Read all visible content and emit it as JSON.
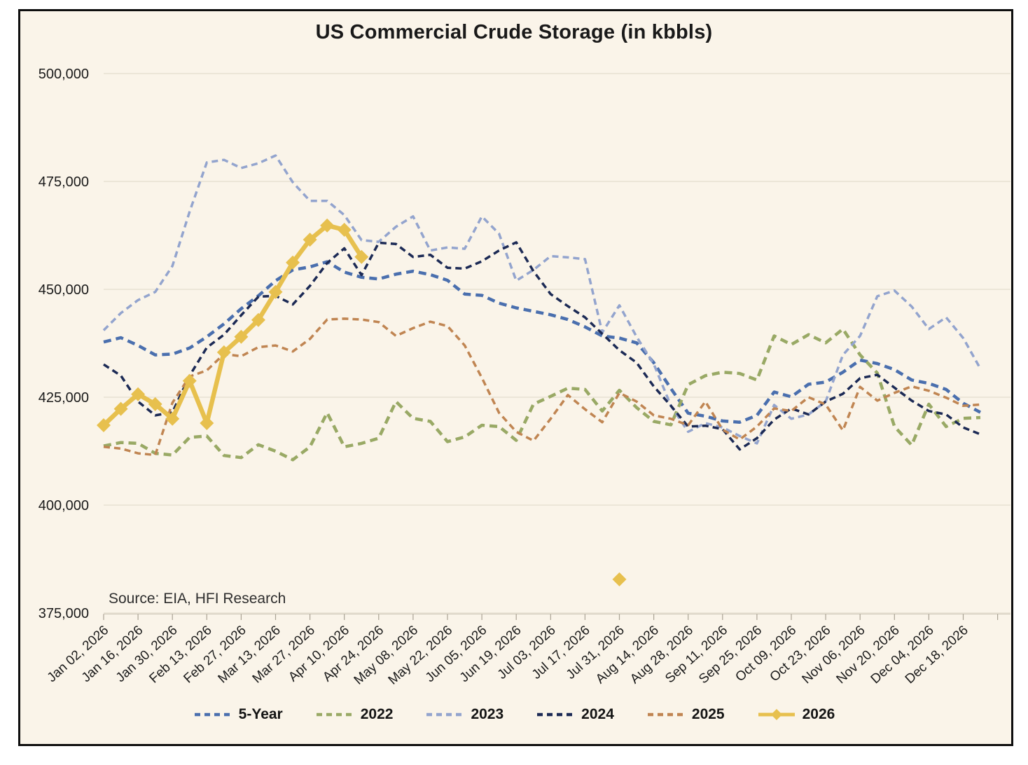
{
  "title": "US Commercial Crude Storage (in kbbls)",
  "source_note": "Source: EIA, HFI Research",
  "colors": {
    "background": "#faf4e9",
    "frame_border": "#0e0e0e",
    "gridline": "#e3ddcf",
    "axis_line": "#c9c2b2",
    "tick_mark": "#a9a294",
    "axis_text": "#1a1a1a"
  },
  "chart_data": {
    "type": "line",
    "title": "US Commercial Crude Storage (in kbbls)",
    "xlabel": "",
    "ylabel": "",
    "grid": "horizontal",
    "legend_position": "bottom",
    "ylim": [
      375000,
      500000
    ],
    "y_ticks": [
      500000,
      475000,
      450000,
      425000,
      400000,
      375000
    ],
    "y_tick_labels": [
      "500,000",
      "475,000",
      "450,000",
      "425,000",
      "400,000",
      "375,000"
    ],
    "x_unit": "weekly points, labels every 2 weeks",
    "x_tick_labels": [
      "Jan 02, 2026",
      "Jan 16, 2026",
      "Jan 30, 2026",
      "Feb 13, 2026",
      "Feb 27, 2026",
      "Mar 13, 2026",
      "Mar 27, 2026",
      "Apr 10, 2026",
      "Apr 24, 2026",
      "May 08, 2026",
      "May 22, 2026",
      "Jun 05, 2026",
      "Jun 19, 2026",
      "Jul 03, 2026",
      "Jul 17, 2026",
      "Jul 31, 2026",
      "Aug 14, 2026",
      "Aug 28, 2026",
      "Sep 11, 2026",
      "Sep 25, 2026",
      "Oct 09, 2026",
      "Oct 23, 2026",
      "Nov 06, 2026",
      "Nov 20, 2026",
      "Dec 04, 2026",
      "Dec 18, 2026"
    ],
    "series": [
      {
        "name": "5-Year",
        "color": "#4a6fae",
        "style": "dashed",
        "marker": "none",
        "values": [
          437800,
          438800,
          437000,
          434800,
          435000,
          436400,
          439000,
          442000,
          445500,
          448500,
          452000,
          454500,
          455200,
          456400,
          454000,
          452800,
          452400,
          453500,
          454200,
          453400,
          452100,
          448900,
          448600,
          446800,
          445700,
          444900,
          444100,
          443000,
          441300,
          439200,
          438700,
          437600,
          433000,
          427000,
          421300,
          420600,
          419500,
          419200,
          420800,
          426200,
          425100,
          428000,
          428500,
          430800,
          433600,
          432800,
          431400,
          429000,
          428200,
          426800,
          423600,
          421500
        ]
      },
      {
        "name": "2022",
        "color": "#99a965",
        "style": "dashed",
        "marker": "none",
        "values": [
          413700,
          414500,
          414300,
          412000,
          411600,
          415700,
          416000,
          411500,
          411000,
          414000,
          412500,
          410500,
          413500,
          421400,
          413500,
          414300,
          415500,
          424000,
          420100,
          419400,
          414700,
          415800,
          418500,
          418200,
          415000,
          423400,
          425200,
          427100,
          426800,
          421800,
          426600,
          422600,
          419400,
          418600,
          427900,
          430000,
          430800,
          430500,
          429000,
          439200,
          437200,
          439500,
          437600,
          440800,
          434800,
          430600,
          418200,
          413900,
          423400,
          418200,
          420100,
          420300
        ]
      },
      {
        "name": "2023",
        "color": "#93a4ce",
        "style": "dashed",
        "marker": "none",
        "values": [
          440500,
          444500,
          447500,
          449400,
          455400,
          468000,
          479400,
          480000,
          478100,
          479200,
          481000,
          474800,
          470500,
          470500,
          467200,
          461400,
          461000,
          464500,
          466900,
          459000,
          459700,
          459400,
          466900,
          462900,
          452000,
          454500,
          457700,
          457400,
          457000,
          440000,
          446300,
          439000,
          432700,
          423000,
          417000,
          419000,
          418000,
          416000,
          414300,
          423200,
          420000,
          421000,
          424000,
          434800,
          439200,
          448400,
          449700,
          446000,
          440800,
          443500,
          438700,
          431600
        ]
      },
      {
        "name": "2024",
        "color": "#1c2a55",
        "style": "dashed",
        "marker": "none",
        "values": [
          432600,
          430000,
          424000,
          420800,
          421500,
          430000,
          436500,
          439500,
          444000,
          448300,
          448500,
          446500,
          450800,
          456100,
          459500,
          453300,
          460800,
          460500,
          457500,
          458000,
          455000,
          454800,
          456500,
          459000,
          460900,
          454200,
          448900,
          446100,
          443500,
          439700,
          435900,
          433000,
          427500,
          423000,
          418200,
          418400,
          417600,
          412900,
          415500,
          419800,
          422400,
          421000,
          424000,
          425800,
          429400,
          430200,
          427200,
          424200,
          421800,
          421000,
          418000,
          416400
        ]
      },
      {
        "name": "2025",
        "color": "#c08552",
        "style": "dashed",
        "marker": "none",
        "values": [
          413500,
          413100,
          412000,
          411600,
          423700,
          429800,
          431200,
          435000,
          434500,
          436600,
          437000,
          435600,
          438500,
          443000,
          443200,
          443000,
          442400,
          439200,
          441000,
          442500,
          441500,
          437000,
          429500,
          421400,
          417000,
          414900,
          420000,
          425500,
          422200,
          419200,
          426000,
          424000,
          420800,
          420000,
          418500,
          424000,
          417500,
          415200,
          418200,
          422400,
          421800,
          425000,
          423300,
          417300,
          427400,
          424200,
          426000,
          427500,
          426500,
          424900,
          423000,
          423300
        ]
      },
      {
        "name": "2026",
        "color": "#e7c04e",
        "style": "solid",
        "marker": "diamond",
        "values": [
          418500,
          422300,
          425700,
          423400,
          420000,
          428800,
          419000,
          435400,
          439000,
          442900,
          449400,
          456200,
          461500,
          464800,
          463800,
          457500,
          null,
          null,
          null,
          null,
          null,
          null,
          null,
          null,
          null,
          null,
          null,
          null,
          null,
          null,
          382800,
          null,
          null,
          null,
          null,
          null,
          null,
          null,
          null,
          null,
          null,
          null,
          null,
          null,
          null,
          null,
          null,
          null,
          null,
          null,
          null,
          null
        ]
      }
    ]
  }
}
